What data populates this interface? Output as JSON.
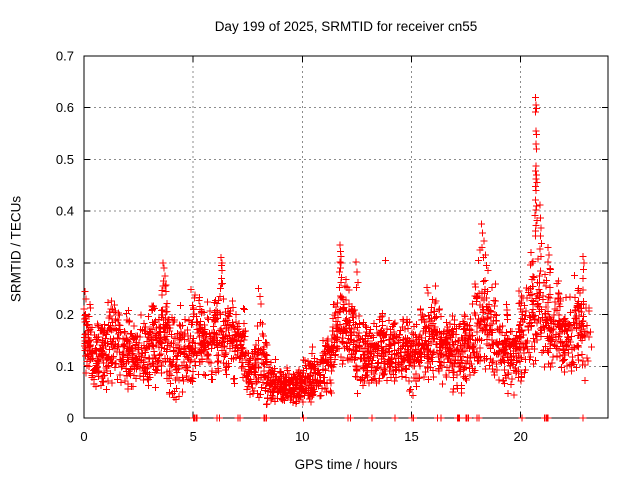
{
  "chart_data": {
    "type": "scatter",
    "title": "Day 199 of 2025, SRMTID for receiver cn55",
    "xlabel": "GPS time / hours",
    "ylabel": "SRMTID / TECUs",
    "xlim": [
      0,
      24
    ],
    "ylim": [
      0,
      0.7
    ],
    "x_tick_values": [
      0,
      5,
      10,
      15,
      20
    ],
    "x_tick_labels": [
      "0",
      "5",
      "10",
      "15",
      "20"
    ],
    "y_tick_values": [
      0,
      0.1,
      0.2,
      0.3,
      0.4,
      0.5,
      0.6,
      0.7
    ],
    "y_tick_labels": [
      "0",
      "0.1",
      "0.2",
      "0.3",
      "0.4",
      "0.5",
      "0.6",
      "0.7"
    ],
    "grid": true,
    "legend": null,
    "marker": "plus",
    "marker_color": "#ff0000",
    "grid_color": "#8c8c8c",
    "axis_color": "#000000",
    "background_color": "#ffffff",
    "series_name": "SRMTID",
    "scatter_bands": [
      [
        0.0,
        0.3,
        0.16,
        0.05,
        45
      ],
      [
        0.3,
        0.7,
        0.12,
        0.04,
        50
      ],
      [
        0.7,
        1.1,
        0.13,
        0.045,
        55
      ],
      [
        1.1,
        1.6,
        0.15,
        0.05,
        60
      ],
      [
        1.6,
        2.1,
        0.13,
        0.045,
        60
      ],
      [
        2.1,
        2.6,
        0.12,
        0.04,
        55
      ],
      [
        2.6,
        3.1,
        0.13,
        0.045,
        55
      ],
      [
        3.1,
        3.5,
        0.14,
        0.05,
        55
      ],
      [
        3.5,
        3.9,
        0.17,
        0.06,
        60
      ],
      [
        3.9,
        4.4,
        0.12,
        0.05,
        55
      ],
      [
        4.4,
        4.9,
        0.13,
        0.05,
        55
      ],
      [
        4.9,
        5.4,
        0.16,
        0.055,
        60
      ],
      [
        5.4,
        5.9,
        0.14,
        0.05,
        55
      ],
      [
        5.9,
        6.4,
        0.17,
        0.055,
        60
      ],
      [
        6.4,
        6.9,
        0.15,
        0.05,
        55
      ],
      [
        6.9,
        7.4,
        0.14,
        0.045,
        55
      ],
      [
        7.4,
        7.9,
        0.1,
        0.035,
        55
      ],
      [
        7.9,
        8.4,
        0.11,
        0.05,
        55
      ],
      [
        8.4,
        8.9,
        0.07,
        0.025,
        55
      ],
      [
        8.9,
        9.4,
        0.062,
        0.022,
        60
      ],
      [
        9.4,
        9.9,
        0.062,
        0.022,
        60
      ],
      [
        9.9,
        10.4,
        0.072,
        0.026,
        60
      ],
      [
        10.4,
        10.9,
        0.085,
        0.03,
        55
      ],
      [
        10.9,
        11.4,
        0.11,
        0.04,
        55
      ],
      [
        11.4,
        11.9,
        0.16,
        0.055,
        60
      ],
      [
        11.9,
        12.4,
        0.17,
        0.055,
        60
      ],
      [
        12.4,
        12.9,
        0.13,
        0.045,
        60
      ],
      [
        12.9,
        13.4,
        0.125,
        0.04,
        60
      ],
      [
        13.4,
        13.9,
        0.135,
        0.045,
        60
      ],
      [
        13.9,
        14.4,
        0.135,
        0.04,
        60
      ],
      [
        14.4,
        14.9,
        0.13,
        0.04,
        60
      ],
      [
        14.9,
        15.4,
        0.12,
        0.045,
        60
      ],
      [
        15.4,
        15.9,
        0.15,
        0.05,
        60
      ],
      [
        15.9,
        16.4,
        0.15,
        0.05,
        60
      ],
      [
        16.4,
        16.9,
        0.135,
        0.045,
        55
      ],
      [
        16.9,
        17.4,
        0.12,
        0.045,
        55
      ],
      [
        17.4,
        17.9,
        0.15,
        0.055,
        60
      ],
      [
        17.9,
        18.4,
        0.19,
        0.065,
        60
      ],
      [
        18.4,
        18.9,
        0.17,
        0.06,
        55
      ],
      [
        18.9,
        19.4,
        0.14,
        0.05,
        55
      ],
      [
        19.4,
        19.9,
        0.12,
        0.045,
        55
      ],
      [
        19.9,
        20.4,
        0.17,
        0.06,
        60
      ],
      [
        20.4,
        20.9,
        0.21,
        0.07,
        60
      ],
      [
        20.9,
        21.4,
        0.2,
        0.065,
        60
      ],
      [
        21.4,
        21.9,
        0.17,
        0.055,
        55
      ],
      [
        21.9,
        22.4,
        0.15,
        0.05,
        55
      ],
      [
        22.4,
        22.9,
        0.19,
        0.055,
        60
      ],
      [
        22.9,
        23.25,
        0.15,
        0.05,
        15
      ]
    ],
    "peak_points": [
      [
        0.05,
        0.245
      ],
      [
        0.1,
        0.23
      ],
      [
        3.62,
        0.3
      ],
      [
        3.66,
        0.29
      ],
      [
        3.7,
        0.275
      ],
      [
        3.64,
        0.265
      ],
      [
        3.72,
        0.255
      ],
      [
        3.76,
        0.245
      ],
      [
        6.28,
        0.31
      ],
      [
        6.31,
        0.3
      ],
      [
        6.29,
        0.295
      ],
      [
        6.33,
        0.285
      ],
      [
        6.3,
        0.27
      ],
      [
        6.35,
        0.26
      ],
      [
        6.26,
        0.25
      ],
      [
        8.0,
        0.25
      ],
      [
        8.05,
        0.235
      ],
      [
        8.1,
        0.22
      ],
      [
        11.72,
        0.335
      ],
      [
        11.74,
        0.322
      ],
      [
        11.76,
        0.312
      ],
      [
        11.73,
        0.302
      ],
      [
        11.78,
        0.3
      ],
      [
        11.75,
        0.29
      ],
      [
        11.7,
        0.282
      ],
      [
        11.8,
        0.272
      ],
      [
        11.77,
        0.262
      ],
      [
        11.71,
        0.252
      ],
      [
        11.95,
        0.255
      ],
      [
        12.0,
        0.268
      ],
      [
        12.05,
        0.252
      ],
      [
        12.45,
        0.302
      ],
      [
        12.5,
        0.282
      ],
      [
        12.55,
        0.262
      ],
      [
        12.48,
        0.252
      ],
      [
        13.8,
        0.305
      ],
      [
        15.7,
        0.252
      ],
      [
        15.75,
        0.242
      ],
      [
        16.1,
        0.255
      ],
      [
        18.2,
        0.375
      ],
      [
        18.26,
        0.358
      ],
      [
        18.32,
        0.342
      ],
      [
        18.14,
        0.325
      ],
      [
        18.38,
        0.315
      ],
      [
        18.08,
        0.305
      ],
      [
        18.44,
        0.295
      ],
      [
        18.5,
        0.285
      ],
      [
        18.29,
        0.31
      ],
      [
        18.23,
        0.33
      ],
      [
        20.68,
        0.62
      ],
      [
        20.7,
        0.605
      ],
      [
        20.72,
        0.598
      ],
      [
        20.69,
        0.592
      ],
      [
        20.71,
        0.555
      ],
      [
        20.73,
        0.548
      ],
      [
        20.7,
        0.53
      ],
      [
        20.72,
        0.52
      ],
      [
        20.7,
        0.487
      ],
      [
        20.68,
        0.478
      ],
      [
        20.73,
        0.47
      ],
      [
        20.7,
        0.462
      ],
      [
        20.74,
        0.455
      ],
      [
        20.69,
        0.448
      ],
      [
        20.71,
        0.44
      ],
      [
        20.68,
        0.422
      ],
      [
        20.73,
        0.41
      ],
      [
        20.7,
        0.402
      ],
      [
        20.66,
        0.392
      ],
      [
        20.75,
        0.382
      ],
      [
        20.71,
        0.372
      ],
      [
        20.69,
        0.362
      ],
      [
        20.67,
        0.352
      ],
      [
        20.88,
        0.412
      ],
      [
        20.9,
        0.387
      ],
      [
        20.92,
        0.367
      ],
      [
        20.9,
        0.352
      ],
      [
        20.95,
        0.337
      ],
      [
        20.88,
        0.327
      ],
      [
        20.93,
        0.312
      ],
      [
        21.25,
        0.33
      ],
      [
        21.3,
        0.315
      ],
      [
        22.85,
        0.312
      ],
      [
        22.9,
        0.3
      ],
      [
        22.88,
        0.287
      ],
      [
        12.52,
        0.047
      ],
      [
        14.9,
        0.052
      ],
      [
        16.9,
        0.05
      ],
      [
        4.35,
        0.042
      ],
      [
        9.7,
        0.028
      ],
      [
        11.1,
        0.05
      ],
      [
        19.55,
        0.065
      ]
    ],
    "zero_marker_hours": [
      5.02,
      5.07,
      5.12,
      5.17,
      6.1,
      6.2,
      7.05,
      7.15,
      8.25,
      8.3,
      8.35,
      10.05,
      12.1,
      12.2,
      13.2,
      14.25,
      15.02,
      15.1,
      16.2,
      16.35,
      17.1,
      17.15,
      17.2,
      17.5,
      17.55,
      17.6,
      18.0,
      18.1,
      20.05,
      21.1,
      21.15,
      21.2,
      21.25,
      22.86
    ]
  }
}
